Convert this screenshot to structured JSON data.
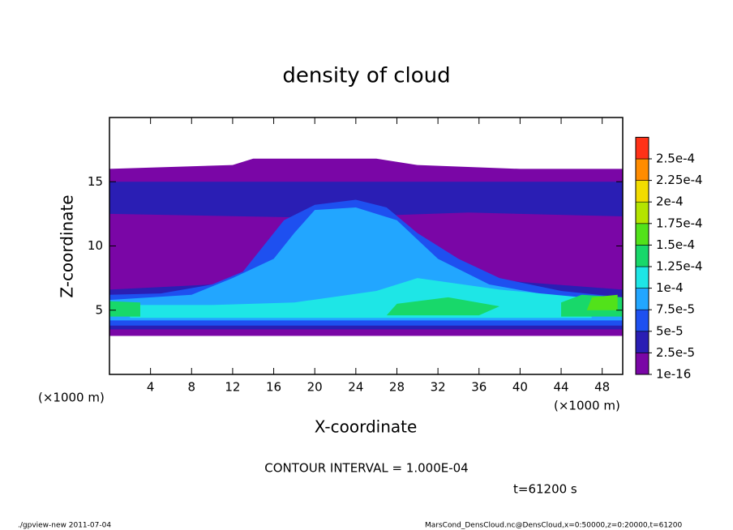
{
  "chart_data": {
    "type": "contour",
    "title": "density of cloud",
    "x_label": "X-coordinate",
    "y_label": "Z-coordinate",
    "x_unit_left": "(×1000 m)",
    "x_unit_right": "(×1000 m)",
    "xlim": [
      0,
      50
    ],
    "xticks": [
      4,
      8,
      12,
      16,
      20,
      24,
      28,
      32,
      36,
      40,
      44,
      48
    ],
    "ylim": [
      0,
      20
    ],
    "yticks": [
      5,
      10,
      15
    ],
    "levels": [
      {
        "value": 1e-16,
        "label": "1e-16"
      },
      {
        "value": 2.5e-05,
        "label": "2.5e-5"
      },
      {
        "value": 5e-05,
        "label": "5e-5"
      },
      {
        "value": 7.5e-05,
        "label": "7.5e-5"
      },
      {
        "value": 0.0001,
        "label": "1e-4"
      },
      {
        "value": 0.000125,
        "label": "1.25e-4"
      },
      {
        "value": 0.00015,
        "label": "1.5e-4"
      },
      {
        "value": 0.000175,
        "label": "1.75e-4"
      },
      {
        "value": 0.0002,
        "label": "2e-4"
      },
      {
        "value": 0.000225,
        "label": "2.25e-4"
      },
      {
        "value": 0.00025,
        "label": "2.5e-4"
      }
    ],
    "colors": [
      "#7a06a6",
      "#2a1eb4",
      "#1e50f0",
      "#22a6ff",
      "#1ee6e6",
      "#18d86a",
      "#52e21a",
      "#b4e400",
      "#f2dc00",
      "#ff8c00",
      "#ff3218"
    ],
    "contour_interval": "CONTOUR INTERVAL = 1.000E-04",
    "time_label": "t=61200 s",
    "footer_left": "./gpview-new  2011-07-04",
    "footer_right": "MarsCond_DensCloud.nc@DensCloud,x=0:50000,z=0:20000,t=61200"
  }
}
